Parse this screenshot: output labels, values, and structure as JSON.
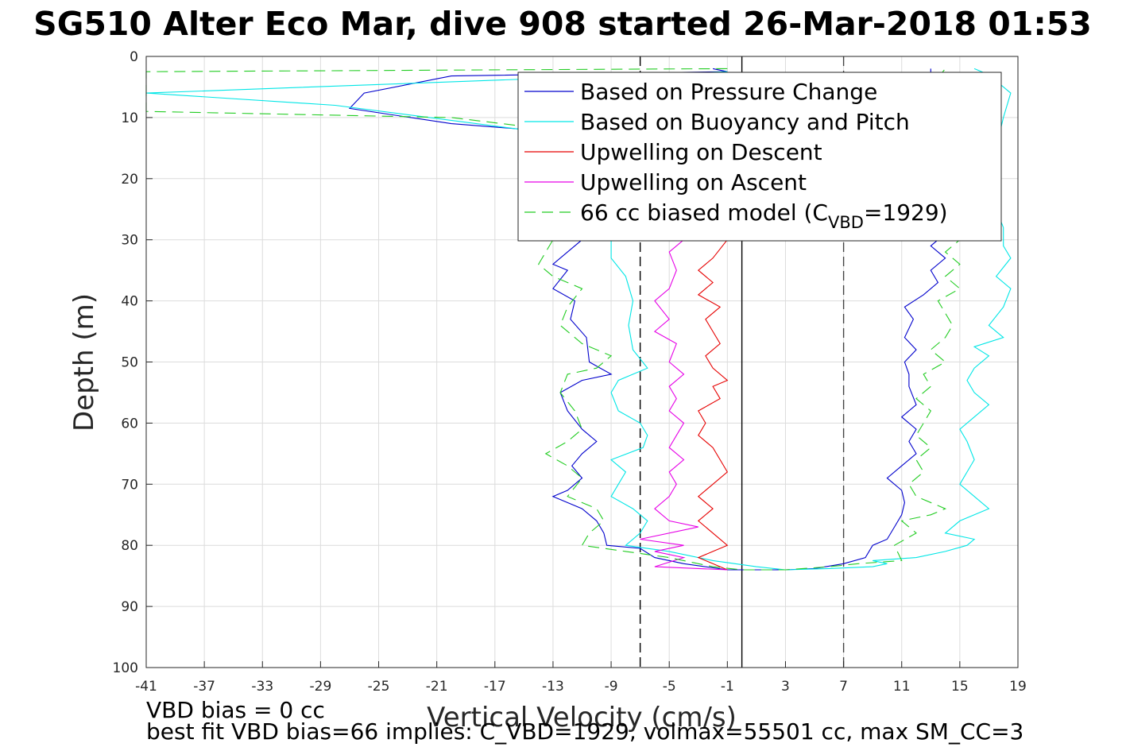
{
  "chart_data": {
    "type": "line",
    "title": "SG510 Alter Eco Mar, dive 908 started 26-Mar-2018 01:53",
    "xlabel": "Vertical Velocity (cm/s)",
    "ylabel": "Depth (m)",
    "xlim": [
      -41,
      19
    ],
    "ylim": [
      0,
      100
    ],
    "y_reversed": true,
    "grid": true,
    "legend_position": "top-right",
    "xticks": [
      -41,
      -37,
      -33,
      -29,
      -25,
      -21,
      -17,
      -13,
      -9,
      -5,
      -1,
      3,
      7,
      11,
      15,
      19
    ],
    "yticks": [
      0,
      10,
      20,
      30,
      40,
      50,
      60,
      70,
      80,
      90,
      100
    ],
    "vertical_lines": [
      {
        "x": -7,
        "style": "dashed",
        "color": "#000000"
      },
      {
        "x": 0,
        "style": "solid",
        "color": "#000000"
      },
      {
        "x": 7,
        "style": "dashed",
        "color": "#444444"
      }
    ],
    "legend": [
      {
        "label": "Based on Pressure Change",
        "color": "#0000cc",
        "style": "solid"
      },
      {
        "label": "Based on Buoyancy and Pitch",
        "color": "#00e6e6",
        "style": "solid"
      },
      {
        "label": "Upwelling on Descent",
        "color": "#e60000",
        "style": "solid"
      },
      {
        "label": "Upwelling on Ascent",
        "color": "#e600e6",
        "style": "solid"
      },
      {
        "label_prefix": "66 cc biased model (C",
        "label_sub": "VBD",
        "label_suffix": "=1929)",
        "color": "#22cc22",
        "style": "dashed"
      }
    ],
    "series": [
      {
        "name": "Based on Pressure Change",
        "color": "#0000cc",
        "dash": false,
        "points": [
          [
            -2,
            2
          ],
          [
            -1,
            2.5
          ],
          [
            -20,
            3.2
          ],
          [
            -26,
            6
          ],
          [
            -27,
            8.5
          ],
          [
            -20,
            11
          ],
          [
            -12,
            12.5
          ],
          [
            -11,
            14
          ],
          [
            -10,
            16
          ],
          [
            -12,
            20
          ],
          [
            -11,
            25
          ],
          [
            -12,
            28
          ],
          [
            -11,
            30
          ],
          [
            -12,
            32
          ],
          [
            -13,
            34
          ],
          [
            -12,
            35
          ],
          [
            -13,
            38
          ],
          [
            -11.5,
            40
          ],
          [
            -11.8,
            43
          ],
          [
            -10.7,
            46
          ],
          [
            -10.5,
            50
          ],
          [
            -9,
            52
          ],
          [
            -11,
            53
          ],
          [
            -12.5,
            55
          ],
          [
            -12,
            58
          ],
          [
            -11,
            61
          ],
          [
            -10,
            63
          ],
          [
            -11,
            65
          ],
          [
            -11.7,
            67
          ],
          [
            -11,
            69
          ],
          [
            -12,
            71
          ],
          [
            -13,
            72
          ],
          [
            -11,
            74
          ],
          [
            -10,
            76
          ],
          [
            -9.5,
            78
          ],
          [
            -9.3,
            80
          ],
          [
            -7,
            80.5
          ],
          [
            -6,
            82
          ],
          [
            -4,
            83
          ],
          [
            -1,
            84
          ],
          [
            1,
            84
          ],
          [
            3,
            84
          ],
          [
            5,
            83.8
          ],
          [
            7,
            83
          ],
          [
            8.5,
            82
          ],
          [
            9,
            80
          ],
          [
            10,
            79
          ],
          [
            10.5,
            77
          ],
          [
            11,
            75
          ],
          [
            11.2,
            73
          ],
          [
            11,
            71
          ],
          [
            10,
            69
          ],
          [
            11,
            67
          ],
          [
            12,
            65
          ],
          [
            11.5,
            63
          ],
          [
            12,
            61
          ],
          [
            11,
            59
          ],
          [
            12,
            57
          ],
          [
            11.5,
            54
          ],
          [
            11.5,
            52
          ],
          [
            11.2,
            50
          ],
          [
            12,
            48
          ],
          [
            11.2,
            46
          ],
          [
            11.8,
            43
          ],
          [
            11.2,
            41
          ],
          [
            12.5,
            39
          ],
          [
            13.5,
            37
          ],
          [
            13,
            35
          ],
          [
            14,
            33
          ],
          [
            13,
            31
          ],
          [
            14,
            29
          ],
          [
            13,
            25
          ],
          [
            12.5,
            20
          ],
          [
            13,
            15
          ],
          [
            13.5,
            10
          ],
          [
            13,
            5
          ],
          [
            13,
            2
          ]
        ]
      },
      {
        "name": "Based on Buoyancy and Pitch",
        "color": "#00e6e6",
        "dash": false,
        "points": [
          [
            -1,
            2.5
          ],
          [
            -41,
            6
          ],
          [
            -28,
            8
          ],
          [
            -15,
            12
          ],
          [
            -10,
            13
          ],
          [
            -8,
            15
          ],
          [
            -9,
            20
          ],
          [
            -8.5,
            25
          ],
          [
            -9,
            30
          ],
          [
            -9,
            33
          ],
          [
            -8,
            36
          ],
          [
            -7.5,
            40
          ],
          [
            -7.8,
            44
          ],
          [
            -7.5,
            48
          ],
          [
            -6.5,
            51
          ],
          [
            -8.5,
            53
          ],
          [
            -9,
            55
          ],
          [
            -8.5,
            58
          ],
          [
            -7,
            60
          ],
          [
            -6.5,
            62
          ],
          [
            -6.8,
            64
          ],
          [
            -9,
            66
          ],
          [
            -8,
            68
          ],
          [
            -8.5,
            70
          ],
          [
            -9,
            72
          ],
          [
            -7.5,
            74
          ],
          [
            -6.5,
            76
          ],
          [
            -7,
            78
          ],
          [
            -8,
            80
          ],
          [
            -5,
            81
          ],
          [
            -2,
            82.5
          ],
          [
            1,
            83.5
          ],
          [
            3,
            84
          ],
          [
            6,
            83.8
          ],
          [
            9,
            83.5
          ],
          [
            10,
            83
          ],
          [
            9,
            82.5
          ],
          [
            12,
            82
          ],
          [
            14,
            81
          ],
          [
            15.5,
            80
          ],
          [
            16,
            79
          ],
          [
            14,
            78
          ],
          [
            15,
            76
          ],
          [
            17,
            74
          ],
          [
            16,
            72
          ],
          [
            15,
            70
          ],
          [
            15.5,
            68
          ],
          [
            16,
            66
          ],
          [
            15.5,
            63
          ],
          [
            15,
            61
          ],
          [
            16,
            59
          ],
          [
            17,
            57
          ],
          [
            16,
            55
          ],
          [
            15.5,
            53
          ],
          [
            16,
            51
          ],
          [
            17,
            49
          ],
          [
            16,
            47.5
          ],
          [
            18,
            46
          ],
          [
            17,
            44
          ],
          [
            18,
            41
          ],
          [
            18.5,
            38
          ],
          [
            17.5,
            36
          ],
          [
            18.5,
            33
          ],
          [
            18,
            31
          ],
          [
            18,
            28
          ],
          [
            17.5,
            25
          ],
          [
            17,
            20
          ],
          [
            17.5,
            15
          ],
          [
            18,
            10
          ],
          [
            18.5,
            6
          ],
          [
            17,
            3
          ],
          [
            16,
            2
          ]
        ]
      },
      {
        "name": "Upwelling on Descent",
        "color": "#e60000",
        "dash": false,
        "points": [
          [
            -1,
            30
          ],
          [
            -2,
            33
          ],
          [
            -3,
            35
          ],
          [
            -2,
            37
          ],
          [
            -3,
            39
          ],
          [
            -1.5,
            41
          ],
          [
            -2.5,
            43
          ],
          [
            -2,
            45
          ],
          [
            -1.5,
            47
          ],
          [
            -2.5,
            49
          ],
          [
            -2,
            51
          ],
          [
            -1,
            53
          ],
          [
            -2,
            54
          ],
          [
            -1.5,
            56
          ],
          [
            -3,
            58
          ],
          [
            -2.5,
            60
          ],
          [
            -3,
            62
          ],
          [
            -2,
            64
          ],
          [
            -1.5,
            66
          ],
          [
            -1,
            68
          ],
          [
            -2,
            70
          ],
          [
            -3,
            72
          ],
          [
            -2,
            74
          ],
          [
            -3,
            76
          ],
          [
            -2,
            78
          ],
          [
            -1,
            80
          ],
          [
            -2,
            81
          ],
          [
            -3,
            82
          ],
          [
            -2,
            83
          ],
          [
            -1,
            84
          ]
        ]
      },
      {
        "name": "Upwelling on Ascent",
        "color": "#e600e6",
        "dash": false,
        "points": [
          [
            -4,
            30
          ],
          [
            -5,
            32
          ],
          [
            -4.5,
            35
          ],
          [
            -5,
            38
          ],
          [
            -6,
            40
          ],
          [
            -5,
            43
          ],
          [
            -6,
            45
          ],
          [
            -4.5,
            47
          ],
          [
            -5,
            50
          ],
          [
            -4,
            52
          ],
          [
            -5,
            54
          ],
          [
            -4.5,
            56
          ],
          [
            -5,
            58
          ],
          [
            -4,
            60
          ],
          [
            -4.5,
            62
          ],
          [
            -5,
            64
          ],
          [
            -4,
            66
          ],
          [
            -5,
            68
          ],
          [
            -4.5,
            70
          ],
          [
            -5,
            72
          ],
          [
            -6,
            74
          ],
          [
            -5,
            76
          ],
          [
            -3,
            77
          ],
          [
            -7,
            79
          ],
          [
            -4,
            80
          ],
          [
            -6,
            81
          ],
          [
            -4,
            82
          ],
          [
            -6,
            83.5
          ],
          [
            -1,
            84
          ]
        ]
      },
      {
        "name": "66 cc biased model (C_VBD=1929)",
        "color": "#22cc22",
        "dash": true,
        "points": [
          [
            -1,
            2
          ],
          [
            -41,
            2.5
          ],
          [
            -41,
            9
          ],
          [
            -20,
            10
          ],
          [
            -13,
            12
          ],
          [
            -12,
            15
          ],
          [
            -13,
            20
          ],
          [
            -12,
            25
          ],
          [
            -13,
            30
          ],
          [
            -14,
            34
          ],
          [
            -13,
            36
          ],
          [
            -11,
            38
          ],
          [
            -12,
            41
          ],
          [
            -12.5,
            44
          ],
          [
            -11,
            47
          ],
          [
            -9,
            49
          ],
          [
            -10,
            51
          ],
          [
            -12,
            52
          ],
          [
            -12.5,
            55
          ],
          [
            -11.5,
            58
          ],
          [
            -11,
            61
          ],
          [
            -12,
            63
          ],
          [
            -13.5,
            65
          ],
          [
            -12,
            67
          ],
          [
            -11,
            69
          ],
          [
            -12,
            72
          ],
          [
            -10,
            74
          ],
          [
            -9.5,
            76
          ],
          [
            -10.5,
            78
          ],
          [
            -11,
            80
          ],
          [
            -8,
            81
          ],
          [
            -5,
            82
          ],
          [
            -2,
            83.5
          ],
          [
            0,
            84
          ],
          [
            3,
            84
          ],
          [
            6,
            83.5
          ],
          [
            8,
            83
          ],
          [
            11,
            82.5
          ],
          [
            10.5,
            80
          ],
          [
            12,
            78
          ],
          [
            11,
            76
          ],
          [
            13,
            75
          ],
          [
            14,
            74
          ],
          [
            12,
            72
          ],
          [
            11.5,
            70
          ],
          [
            12.5,
            68
          ],
          [
            12,
            66
          ],
          [
            13,
            64
          ],
          [
            12,
            62
          ],
          [
            12.5,
            60
          ],
          [
            13,
            58
          ],
          [
            12,
            56
          ],
          [
            13,
            54
          ],
          [
            12.5,
            52
          ],
          [
            14,
            50
          ],
          [
            13,
            48
          ],
          [
            14,
            46
          ],
          [
            14.5,
            44
          ],
          [
            14,
            42
          ],
          [
            13.5,
            40
          ],
          [
            15,
            38
          ],
          [
            14,
            36
          ],
          [
            15,
            34
          ],
          [
            14,
            32
          ],
          [
            15,
            30
          ],
          [
            14,
            25
          ],
          [
            14.5,
            20
          ],
          [
            14,
            15
          ],
          [
            13.5,
            10
          ],
          [
            13,
            5
          ],
          [
            14,
            2
          ]
        ]
      }
    ]
  },
  "annotations": {
    "vbd_bias": "VBD bias = 0 cc",
    "best_fit": "best fit VBD bias=66 implies: C_VBD=1929, volmax=55501 cc, max SM_CC=3"
  }
}
